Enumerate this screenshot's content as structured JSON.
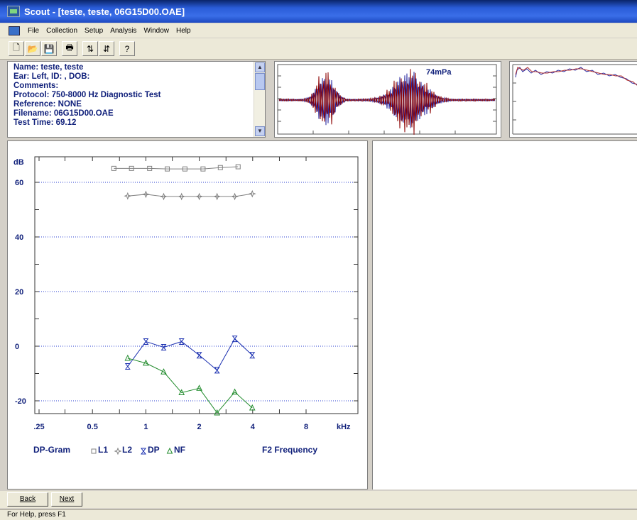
{
  "window": {
    "title": "Scout - [teste, teste, 06G15D00.OAE]"
  },
  "menu": {
    "items": [
      "File",
      "Collection",
      "Setup",
      "Analysis",
      "Window",
      "Help"
    ]
  },
  "toolbar": {
    "buttons": [
      {
        "icon": "new-file-icon",
        "glyph": "🗋"
      },
      {
        "icon": "open-folder-icon",
        "glyph": "📂"
      },
      {
        "icon": "save-icon",
        "glyph": "💾"
      },
      {
        "icon": "print-icon",
        "glyph": "🖶"
      },
      {
        "icon": "collect-icon",
        "glyph": "⇅"
      },
      {
        "icon": "analyze-icon",
        "glyph": "⇵"
      },
      {
        "icon": "help-icon",
        "glyph": "?"
      }
    ]
  },
  "info": {
    "lines": [
      "Name:  teste, teste",
      "Ear: Left, ID: , DOB:",
      "Comments:",
      "Protocol: 750-8000 Hz Diagnostic Test",
      "Reference: NONE",
      "Filename: 06G15D00.OAE",
      "Test Time: 69.12"
    ]
  },
  "waveform": {
    "amplitude_label": "74mPa"
  },
  "dpgram": {
    "chart_data": {
      "type": "line",
      "ylabel": "dB",
      "xlabel": "F2 Frequency",
      "x_unit": "kHz",
      "legend_title": "DP-Gram",
      "x_scale": "log",
      "xlim": [
        0.25,
        8
      ],
      "ylim": [
        -30,
        70
      ],
      "x_ticks": [
        {
          "v": 0.25,
          "label": ".25"
        },
        {
          "v": 0.5,
          "label": "0.5"
        },
        {
          "v": 1,
          "label": "1"
        },
        {
          "v": 2,
          "label": "2"
        },
        {
          "v": 4,
          "label": "4"
        },
        {
          "v": 8,
          "label": "8"
        }
      ],
      "y_ticks": [
        60,
        40,
        20,
        0,
        -20
      ],
      "grid": true,
      "series": [
        {
          "name": "L1",
          "color": "#808080",
          "marker": "square",
          "points": [
            [
              0.66,
              65.1
            ],
            [
              0.83,
              65.1
            ],
            [
              1.05,
              65.1
            ],
            [
              1.32,
              64.9
            ],
            [
              1.66,
              64.9
            ],
            [
              2.1,
              64.9
            ],
            [
              2.63,
              65.4
            ],
            [
              3.31,
              65.7
            ]
          ]
        },
        {
          "name": "L2",
          "color": "#808080",
          "marker": "star",
          "points": [
            [
              0.79,
              55
            ],
            [
              1.0,
              55.6
            ],
            [
              1.26,
              54.8
            ],
            [
              1.59,
              54.8
            ],
            [
              2.0,
              54.8
            ],
            [
              2.52,
              54.8
            ],
            [
              3.17,
              54.8
            ],
            [
              3.98,
              55.8
            ]
          ]
        },
        {
          "name": "DP",
          "color": "#1a2fb0",
          "marker": "bowtie",
          "points": [
            [
              0.79,
              -7.4
            ],
            [
              1.0,
              1.7
            ],
            [
              1.26,
              -0.4
            ],
            [
              1.59,
              1.7
            ],
            [
              2.0,
              -3.3
            ],
            [
              2.52,
              -8.8
            ],
            [
              3.17,
              2.7
            ],
            [
              3.98,
              -3.3
            ]
          ]
        },
        {
          "name": "NF",
          "color": "#1f8a2a",
          "marker": "triangle",
          "points": [
            [
              0.79,
              -4.4
            ],
            [
              1.0,
              -6.2
            ],
            [
              1.26,
              -9.4
            ],
            [
              1.59,
              -17
            ],
            [
              2.0,
              -15.4
            ],
            [
              2.52,
              -24.4
            ],
            [
              3.17,
              -16.8
            ],
            [
              3.98,
              -22.6
            ]
          ]
        }
      ]
    }
  },
  "nav": {
    "back_label": "Back",
    "next_label": "Next"
  },
  "status": {
    "text": "For Help, press F1"
  }
}
